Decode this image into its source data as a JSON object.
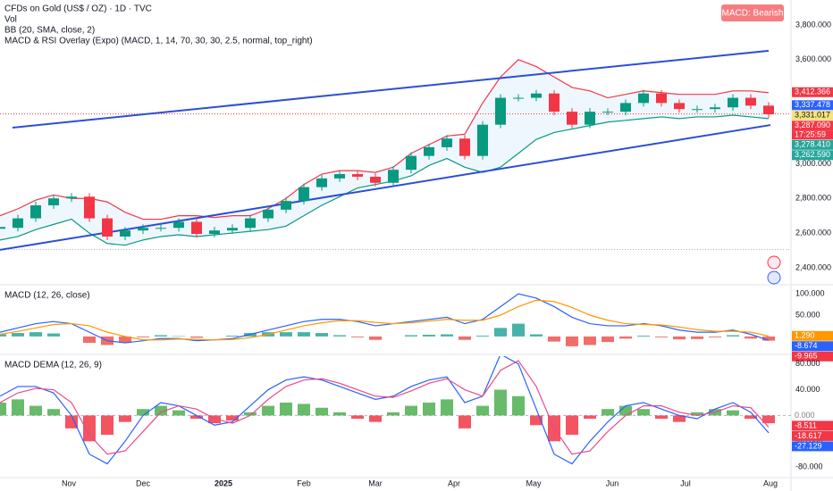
{
  "chart_data": [
    {
      "type": "candlestick",
      "title": "CFDs on Gold (US$ / OZ) · 1D · TVC",
      "legend_lines": [
        "Vol",
        "BB (20, SMA, close, 2)",
        "MACD & RSI Overlay (Expo) (MACD, 1, 14, 70, 30, 30, 2.5, normal, top_right)"
      ],
      "badge": "MACD: Bearish",
      "countdown": "17:25:59",
      "x": [
        0,
        1,
        2,
        3,
        4,
        5,
        6,
        7,
        8,
        9,
        10,
        11,
        12,
        13,
        14,
        15,
        16,
        17,
        18,
        19,
        20,
        21,
        22,
        23,
        24,
        25,
        26,
        27,
        28,
        29,
        30,
        31,
        32,
        33,
        34,
        35,
        36,
        37,
        38,
        39,
        40,
        41,
        42,
        43
      ],
      "xlim": [
        0,
        44.25
      ],
      "ylim": [
        2307,
        3944
      ],
      "yticks": [
        {
          "value": 2400,
          "label": "2,400.000"
        },
        {
          "value": 2600,
          "label": "2,600.000"
        },
        {
          "value": 2800,
          "label": "2,800.000"
        },
        {
          "value": 3000,
          "label": "3,000.000"
        },
        {
          "value": 3600,
          "label": "3,600.000"
        },
        {
          "value": 3800,
          "label": "3,800.000"
        }
      ],
      "series": [
        {
          "name": "Close",
          "up_color": "#089981",
          "down_color": "#f23645",
          "values": [
            2630,
            2685,
            2760,
            2800,
            2810,
            2685,
            2580,
            2615,
            2630,
            2630,
            2665,
            2595,
            2615,
            2630,
            2685,
            2735,
            2785,
            2865,
            2915,
            2940,
            2925,
            2890,
            2965,
            3045,
            3095,
            3145,
            3045,
            3225,
            3380,
            3380,
            3405,
            3300,
            3225,
            3300,
            3300,
            3350,
            3405,
            3350,
            3315,
            3315,
            3325,
            3380,
            3335,
            3285
          ]
        },
        {
          "name": "BB Upper",
          "color": "#f23645",
          "values": [
            2700,
            2740,
            2790,
            2820,
            2800,
            2800,
            2780,
            2720,
            2680,
            2680,
            2700,
            2700,
            2690,
            2700,
            2700,
            2740,
            2800,
            2880,
            2940,
            2960,
            2960,
            2950,
            2980,
            3060,
            3110,
            3160,
            3170,
            3350,
            3500,
            3600,
            3560,
            3500,
            3440,
            3420,
            3380,
            3400,
            3420,
            3410,
            3400,
            3400,
            3400,
            3420,
            3420,
            3410
          ]
        },
        {
          "name": "BB Lower",
          "color": "#089981",
          "values": [
            2560,
            2580,
            2620,
            2650,
            2680,
            2600,
            2540,
            2530,
            2560,
            2580,
            2590,
            2580,
            2590,
            2600,
            2610,
            2620,
            2640,
            2700,
            2760,
            2810,
            2860,
            2880,
            2900,
            2930,
            2990,
            3030,
            2980,
            2950,
            2980,
            3060,
            3140,
            3180,
            3200,
            3220,
            3240,
            3250,
            3260,
            3270,
            3260,
            3270,
            3270,
            3280,
            3270,
            3260
          ]
        }
      ],
      "band_color": "#2196f3",
      "trendlines": [
        {
          "x": [
            0.7,
            43
          ],
          "y": [
            3208,
            3651
          ],
          "color": "#2a4fd6"
        },
        {
          "x": [
            0,
            43.1
          ],
          "y": [
            2503,
            3223
          ],
          "color": "#2a4fd6"
        }
      ],
      "hlines": [
        {
          "value": 3287.09,
          "color": "#f23645"
        },
        {
          "value": 2505,
          "color": "#b2b5be"
        }
      ],
      "price_labels": [
        {
          "value": 3412.366,
          "label": "3,412.366",
          "color": "#f23645",
          "text_color": "#ffffff"
        },
        {
          "value": 3337.478,
          "label": "3,337.478",
          "color": "#2962ff",
          "text_color": "#ffffff"
        },
        {
          "value": 3331.017,
          "label": "3,331.017",
          "color": "#f7e37c",
          "text_color": "#131722"
        },
        {
          "value": 3287.09,
          "label": "3,287.090",
          "color": "#f23645",
          "text_color": "#ffffff"
        },
        {
          "value": 3278.41,
          "label": "3,278.410",
          "color": "#26a69a",
          "text_color": "#ffffff"
        },
        {
          "value": 3262.59,
          "label": "3,262.590",
          "color": "#26a69a",
          "text_color": "#ffffff"
        }
      ]
    },
    {
      "type": "macd",
      "title": "MACD (12, 26, close)",
      "x": [
        0,
        1,
        2,
        3,
        4,
        5,
        6,
        7,
        8,
        9,
        10,
        11,
        12,
        13,
        14,
        15,
        16,
        17,
        18,
        19,
        20,
        21,
        22,
        23,
        24,
        25,
        26,
        27,
        28,
        29,
        30,
        31,
        32,
        33,
        34,
        35,
        36,
        37,
        38,
        39,
        40,
        41,
        42,
        43
      ],
      "xlim": [
        0,
        44.25
      ],
      "ylim": [
        -40,
        117
      ],
      "yticks": [
        {
          "value": 100,
          "label": "100.000"
        },
        {
          "value": 50,
          "label": "50.000"
        }
      ],
      "series": [
        {
          "name": "Histogram",
          "up_color": "#26a69a",
          "down_color": "#ef5350",
          "values": [
            5,
            8,
            10,
            7,
            0,
            -15,
            -20,
            -15,
            -2,
            3,
            1,
            -3,
            0,
            2,
            8,
            10,
            10,
            10,
            8,
            3,
            -2,
            -8,
            0,
            3,
            4,
            5,
            -8,
            2,
            20,
            30,
            5,
            -12,
            -23,
            -20,
            -13,
            -5,
            2,
            -2,
            -7,
            -6,
            -2,
            3,
            -5,
            -10
          ]
        },
        {
          "name": "MACD",
          "color": "#2962ff",
          "values": [
            10,
            20,
            30,
            35,
            30,
            10,
            -10,
            -15,
            -10,
            -5,
            -5,
            -10,
            -8,
            -5,
            5,
            15,
            25,
            35,
            40,
            40,
            35,
            25,
            30,
            35,
            40,
            45,
            30,
            40,
            70,
            100,
            90,
            70,
            45,
            30,
            25,
            25,
            30,
            25,
            15,
            10,
            10,
            15,
            5,
            -9
          ]
        },
        {
          "name": "Signal",
          "color": "#ff9800",
          "values": [
            5,
            12,
            20,
            28,
            30,
            25,
            10,
            0,
            -8,
            -8,
            -6,
            -7,
            -8,
            -7,
            -3,
            5,
            15,
            25,
            32,
            37,
            37,
            33,
            30,
            32,
            36,
            40,
            38,
            38,
            50,
            70,
            85,
            82,
            68,
            50,
            38,
            30,
            28,
            27,
            22,
            16,
            12,
            12,
            10,
            1
          ]
        }
      ],
      "price_labels": [
        {
          "value": 1.29,
          "label": "1.290",
          "color": "#ff9800",
          "text_color": "#ffffff"
        },
        {
          "value": -8.674,
          "label": "-8.674",
          "color": "#2962ff",
          "text_color": "#ffffff"
        },
        {
          "value": -9.965,
          "label": "-9.965",
          "color": "#f23645",
          "text_color": "#ffffff"
        }
      ]
    },
    {
      "type": "macd",
      "title": "MACD DEMA (12, 26, 9)",
      "x": [
        0,
        1,
        2,
        3,
        4,
        5,
        6,
        7,
        8,
        9,
        10,
        11,
        12,
        13,
        14,
        15,
        16,
        17,
        18,
        19,
        20,
        21,
        22,
        23,
        24,
        25,
        26,
        27,
        28,
        29,
        30,
        31,
        32,
        33,
        34,
        35,
        36,
        37,
        38,
        39,
        40,
        41,
        42,
        43
      ],
      "xlim": [
        0,
        44.25
      ],
      "ylim": [
        -95,
        92
      ],
      "yticks": [
        {
          "value": 80,
          "label": "80.000"
        },
        {
          "value": 40,
          "label": "40.000"
        },
        {
          "value": -40,
          "label": "-40.000"
        },
        {
          "value": -80,
          "label": "-80.000"
        }
      ],
      "xticks": [
        {
          "value": 3.85,
          "label": "Nov"
        },
        {
          "value": 8,
          "label": "Dec"
        },
        {
          "value": 12.5,
          "label": "2025"
        },
        {
          "value": 17,
          "label": "Feb"
        },
        {
          "value": 21,
          "label": "Mar"
        },
        {
          "value": 25.4,
          "label": "Apr"
        },
        {
          "value": 29.85,
          "label": "May"
        },
        {
          "value": 34.25,
          "label": "Jun"
        },
        {
          "value": 38.35,
          "label": "Jul"
        },
        {
          "value": 43.1,
          "label": "Aug"
        }
      ],
      "zero_line": 0,
      "series": [
        {
          "name": "Histogram",
          "up_color": "#4caf50",
          "down_color": "#f23645",
          "values": [
            20,
            25,
            15,
            10,
            -20,
            -40,
            -30,
            -10,
            10,
            15,
            8,
            -5,
            -12,
            -8,
            5,
            15,
            20,
            18,
            12,
            5,
            -5,
            -10,
            5,
            15,
            20,
            25,
            -20,
            15,
            40,
            30,
            -15,
            -40,
            -30,
            -5,
            10,
            15,
            10,
            -5,
            -10,
            5,
            10,
            8,
            -5,
            -12
          ]
        },
        {
          "name": "MACD",
          "color": "#2962ff",
          "values": [
            30,
            45,
            45,
            35,
            0,
            -60,
            -75,
            -40,
            0,
            20,
            15,
            0,
            -15,
            -10,
            15,
            40,
            55,
            60,
            55,
            45,
            35,
            25,
            30,
            45,
            55,
            60,
            20,
            30,
            95,
            80,
            10,
            -60,
            -75,
            -40,
            -10,
            15,
            20,
            10,
            0,
            -5,
            10,
            20,
            5,
            -27
          ]
        },
        {
          "name": "Signal",
          "color": "#e84a8a",
          "values": [
            20,
            35,
            42,
            40,
            20,
            -30,
            -60,
            -55,
            -25,
            5,
            15,
            10,
            -5,
            -12,
            0,
            25,
            45,
            55,
            57,
            50,
            40,
            30,
            28,
            38,
            50,
            57,
            40,
            30,
            70,
            85,
            45,
            -20,
            -60,
            -55,
            -25,
            0,
            15,
            15,
            5,
            0,
            5,
            15,
            12,
            -18
          ]
        }
      ],
      "price_labels": [
        {
          "value": 0,
          "label": "0.000",
          "color": "#ffffff",
          "text_color": "#787b86"
        },
        {
          "value": -8.511,
          "label": "-8.511",
          "color": "#f23645",
          "text_color": "#ffffff"
        },
        {
          "value": -18.617,
          "label": "-18.617",
          "color": "#f23645",
          "text_color": "#ffffff"
        },
        {
          "value": -27.129,
          "label": "-27.129",
          "color": "#2962ff",
          "text_color": "#ffffff"
        }
      ]
    }
  ]
}
